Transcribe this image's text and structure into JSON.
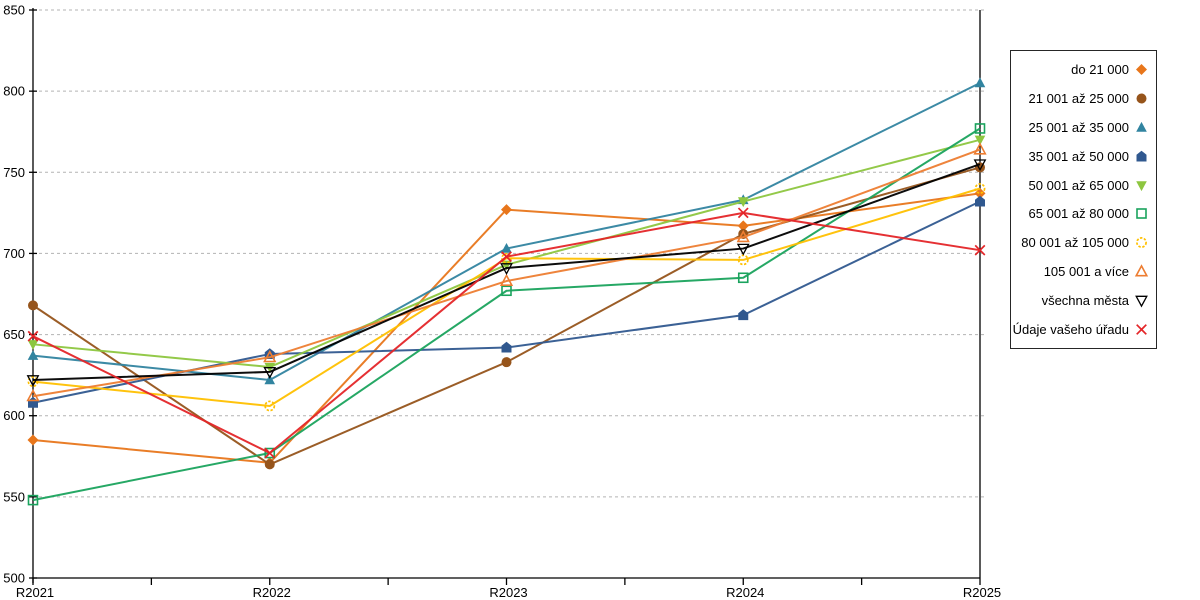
{
  "chart_data": {
    "type": "line",
    "title": "",
    "xlabel": "",
    "ylabel": "",
    "categories": [
      "R2021",
      "R2022",
      "R2023",
      "R2024",
      "R2025"
    ],
    "ylim": [
      500,
      850
    ],
    "ytick_step": 50,
    "grid": "horizontal-dashed",
    "legend_position": "right",
    "axis_color": "#000000",
    "gridline_color": "#b3b3b3",
    "series": [
      {
        "name": "do 21 000",
        "marker": "diamond-filled",
        "color": "#e8761b",
        "values": [
          585,
          571,
          727,
          717,
          737
        ]
      },
      {
        "name": "21 001 až 25 000",
        "marker": "circle-filled",
        "color": "#96541b",
        "values": [
          668,
          570,
          633,
          712,
          753
        ]
      },
      {
        "name": "25 001 až 35 000",
        "marker": "triangle-up-filled",
        "color": "#3184a0",
        "values": [
          637,
          622,
          703,
          733,
          805
        ]
      },
      {
        "name": "35 001 až 50 000",
        "marker": "pentagon-filled",
        "color": "#30588f",
        "values": [
          608,
          638,
          642,
          662,
          732
        ]
      },
      {
        "name": "50 001 až 65 000",
        "marker": "triangle-down-filled",
        "color": "#8dc63f",
        "values": [
          644,
          630,
          693,
          732,
          770
        ]
      },
      {
        "name": "65 001 až 80 000",
        "marker": "square-hollow",
        "color": "#1aa35d",
        "values": [
          548,
          577,
          677,
          685,
          777
        ]
      },
      {
        "name": "80 001 až 105 000",
        "marker": "circle-hollow-dotted",
        "color": "#ffc000",
        "values": [
          621,
          606,
          697,
          696,
          740
        ]
      },
      {
        "name": "105 001 a více",
        "marker": "triangle-up-hollow",
        "color": "#ed7d31",
        "values": [
          612,
          636,
          683,
          710,
          764
        ]
      },
      {
        "name": "všechna města",
        "marker": "triangle-down-hollow",
        "color": "#000000",
        "values": [
          622,
          627,
          691,
          703,
          755
        ]
      },
      {
        "name": "Údaje vašeho úřadu",
        "marker": "x-cross",
        "color": "#e42528",
        "values": [
          649,
          577,
          698,
          725,
          702
        ]
      }
    ]
  }
}
